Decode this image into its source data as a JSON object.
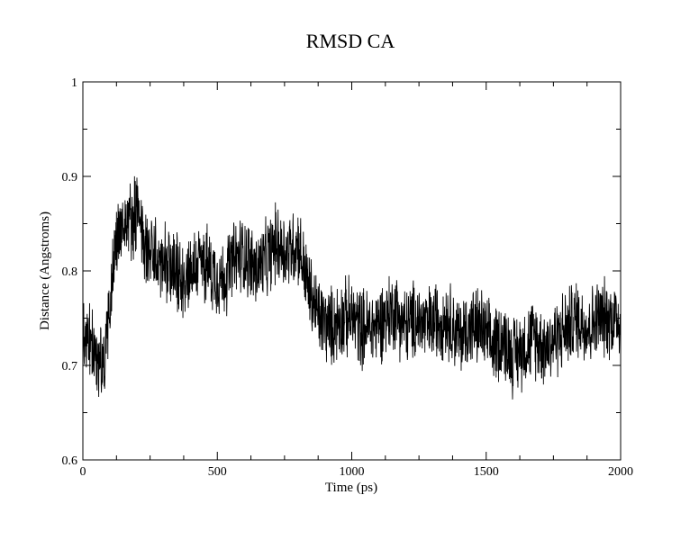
{
  "chart_data": {
    "type": "line",
    "title": "RMSD CA",
    "xlabel": "Time (ps)",
    "ylabel": "Distance (Angstroms)",
    "xlim": [
      0,
      2000
    ],
    "ylim": [
      0.6,
      1.0
    ],
    "x_ticks": [
      "0",
      "500",
      "1000",
      "1500",
      "2000"
    ],
    "y_ticks": [
      "0.6",
      "0.7",
      "0.8",
      "0.9",
      "1"
    ],
    "x_minor_step": 125,
    "y_minor_step": 0.05,
    "grid": false,
    "legend": "none",
    "line_color": "#000000",
    "series": [
      {
        "x_start": 0,
        "x_step": 40,
        "envelope_halfwidth": 0.045,
        "values": [
          0.74,
          0.71,
          0.7,
          0.83,
          0.85,
          0.86,
          0.82,
          0.81,
          0.8,
          0.79,
          0.8,
          0.81,
          0.8,
          0.79,
          0.81,
          0.82,
          0.8,
          0.81,
          0.83,
          0.82,
          0.83,
          0.78,
          0.75,
          0.74,
          0.75,
          0.75,
          0.74,
          0.74,
          0.75,
          0.76,
          0.74,
          0.75,
          0.74,
          0.75,
          0.75,
          0.73,
          0.74,
          0.74,
          0.72,
          0.73,
          0.71,
          0.72,
          0.73,
          0.72,
          0.73,
          0.74,
          0.75,
          0.74,
          0.75,
          0.75,
          0.75
        ]
      }
    ]
  }
}
